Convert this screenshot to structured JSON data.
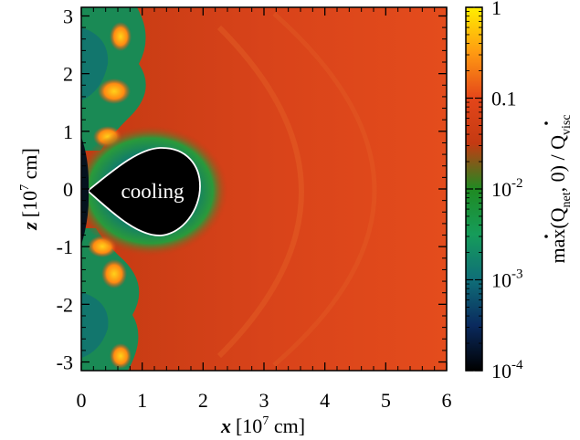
{
  "chart_data": {
    "type": "heatmap",
    "x": {
      "label_var": "x",
      "label_unit": "[10",
      "label_exp": "7",
      "label_tail": " cm]",
      "range": [
        0,
        6
      ],
      "ticks": [
        0,
        1,
        2,
        3,
        4,
        5,
        6
      ],
      "tick_labels": [
        "0",
        "1",
        "2",
        "3",
        "4",
        "5",
        "6"
      ]
    },
    "y": {
      "label_var": "z",
      "label_unit": "[10",
      "label_exp": "7",
      "label_tail": " cm]",
      "range": [
        -3.15,
        3.15
      ],
      "ticks": [
        -3,
        -2,
        -1,
        0,
        1,
        2,
        3
      ],
      "tick_labels": [
        "-3",
        "-2",
        "-1",
        "0",
        "1",
        "2",
        "3"
      ]
    },
    "colorbar": {
      "scale": "log",
      "range": [
        0.0001,
        1
      ],
      "ticks": [
        1,
        0.1,
        0.01,
        0.001,
        0.0001
      ],
      "tick_labels": [
        {
          "base": "1",
          "exp": ""
        },
        {
          "base": "0.1",
          "exp": ""
        },
        {
          "base": "10",
          "exp": "-2"
        },
        {
          "base": "10",
          "exp": "-3"
        },
        {
          "base": "10",
          "exp": "-4"
        }
      ],
      "label": {
        "prefix": "max(",
        "q1": "Q",
        "q1_sub": "net",
        "middle": ", 0) / ",
        "q2": "Q",
        "q2_sub": "visc"
      },
      "colors": [
        "#000000",
        "#0a2a5e",
        "#0f6e78",
        "#169c5a",
        "#1f8a22",
        "#c43a12",
        "#e4461a",
        "#ff9a12",
        "#ffee00"
      ]
    },
    "annotation": "cooling",
    "background_value": 0.03
  }
}
